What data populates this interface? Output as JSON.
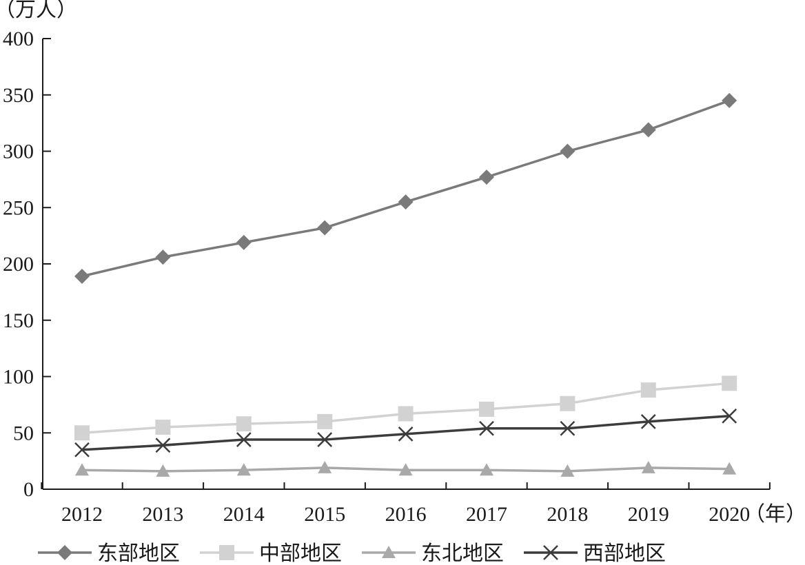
{
  "chart_data": {
    "type": "line",
    "y_unit_label": "（万人）",
    "x_unit_label": "（年）",
    "x": [
      "2012",
      "2013",
      "2014",
      "2015",
      "2016",
      "2017",
      "2018",
      "2019",
      "2020"
    ],
    "ylim": [
      0,
      400
    ],
    "yticks": [
      0,
      50,
      100,
      150,
      200,
      250,
      300,
      350,
      400
    ],
    "grid": false,
    "legend_position": "bottom",
    "series": [
      {
        "name": "东部地区",
        "marker": "diamond",
        "color": "#7a7a7a",
        "values": [
          189,
          206,
          219,
          232,
          255,
          277,
          300,
          319,
          345
        ]
      },
      {
        "name": "中部地区",
        "marker": "square",
        "color": "#d2d2d2",
        "values": [
          50,
          55,
          58,
          60,
          67,
          71,
          76,
          88,
          94
        ]
      },
      {
        "name": "东北地区",
        "marker": "triangle",
        "color": "#a9a9a9",
        "values": [
          17,
          16,
          17,
          19,
          17,
          17,
          16,
          19,
          18
        ]
      },
      {
        "name": "西部地区",
        "marker": "x",
        "color": "#3c3c3c",
        "values": [
          35,
          39,
          44,
          44,
          49,
          54,
          54,
          60,
          65
        ]
      }
    ]
  }
}
